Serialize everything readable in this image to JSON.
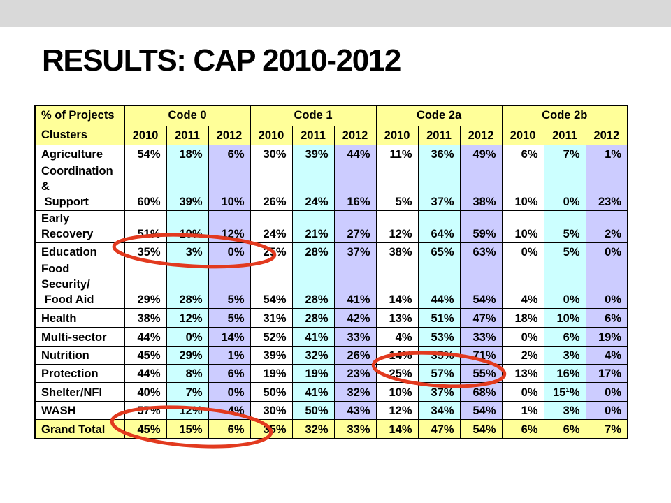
{
  "slide": {
    "title": "RESULTS: CAP 2010-2012"
  },
  "colors": {
    "header_fill": "#ffff99",
    "fill_2011": "#ccffff",
    "fill_2012": "#ccccff",
    "highlight_ring": "#e23a1f",
    "top_band": "#d9d9d9"
  },
  "table": {
    "corner_label": "% of Projects",
    "groups": [
      "Code 0",
      "Code 1",
      "Code 2a",
      "Code 2b"
    ],
    "clusters_label": "Clusters",
    "years": [
      "2010",
      "2011",
      "2012"
    ],
    "rows": [
      {
        "lines": [
          "Agriculture"
        ],
        "values": [
          "54%",
          "18%",
          "6%",
          "30%",
          "39%",
          "44%",
          "11%",
          "36%",
          "49%",
          "6%",
          "7%",
          "1%"
        ]
      },
      {
        "lines": [
          "Coordination",
          "&",
          " Support"
        ],
        "values": [
          "60%",
          "39%",
          "10%",
          "26%",
          "24%",
          "16%",
          "5%",
          "37%",
          "38%",
          "10%",
          "0%",
          "23%"
        ]
      },
      {
        "lines": [
          "Early",
          "Recovery"
        ],
        "values": [
          "51%",
          "10%",
          "12%",
          "24%",
          "21%",
          "27%",
          "12%",
          "64%",
          "59%",
          "10%",
          "5%",
          "2%"
        ]
      },
      {
        "lines": [
          "Education"
        ],
        "values": [
          "35%",
          "3%",
          "0%",
          "25%",
          "28%",
          "37%",
          "38%",
          "65%",
          "63%",
          "0%",
          "5%",
          "0%"
        ]
      },
      {
        "lines": [
          "Food",
          "Security/",
          " Food Aid"
        ],
        "values": [
          "29%",
          "28%",
          "5%",
          "54%",
          "28%",
          "41%",
          "14%",
          "44%",
          "54%",
          "4%",
          "0%",
          "0%"
        ]
      },
      {
        "lines": [
          "Health"
        ],
        "values": [
          "38%",
          "12%",
          "5%",
          "31%",
          "28%",
          "42%",
          "13%",
          "51%",
          "47%",
          "18%",
          "10%",
          "6%"
        ]
      },
      {
        "lines": [
          "Multi-sector"
        ],
        "values": [
          "44%",
          "0%",
          "14%",
          "52%",
          "41%",
          "33%",
          "4%",
          "53%",
          "33%",
          "0%",
          "6%",
          "19%"
        ]
      },
      {
        "lines": [
          "Nutrition"
        ],
        "values": [
          "45%",
          "29%",
          "1%",
          "39%",
          "32%",
          "26%",
          "14%",
          "35%",
          "71%",
          "2%",
          "3%",
          "4%"
        ]
      },
      {
        "lines": [
          "Protection"
        ],
        "values": [
          "44%",
          "8%",
          "6%",
          "19%",
          "19%",
          "23%",
          "25%",
          "57%",
          "55%",
          "13%",
          "16%",
          "17%"
        ]
      },
      {
        "lines": [
          "Shelter/NFI"
        ],
        "values": [
          "40%",
          "7%",
          "0%",
          "50%",
          "41%",
          "32%",
          "10%",
          "37%",
          "68%",
          "0%",
          "15¹%",
          "0%"
        ]
      },
      {
        "lines": [
          "WASH"
        ],
        "values": [
          "57%",
          "12%",
          "4%",
          "30%",
          "50%",
          "43%",
          "12%",
          "34%",
          "54%",
          "1%",
          "3%",
          "0%"
        ]
      }
    ],
    "grand_total": {
      "label": "Grand Total",
      "values": [
        "45%",
        "15%",
        "6%",
        "35%",
        "32%",
        "33%",
        "14%",
        "47%",
        "54%",
        "6%",
        "6%",
        "7%"
      ]
    }
  }
}
